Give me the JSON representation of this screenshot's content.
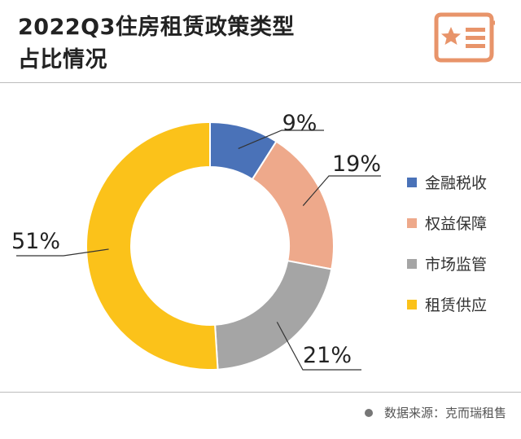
{
  "header": {
    "title_line1": "2022Q3住房租赁政策类型",
    "title_line2": "占比情况"
  },
  "logo": {
    "icon": "star-document-icon",
    "color": "#e8946a"
  },
  "source": {
    "text": "数据来源：克而瑞租售"
  },
  "chart_data": {
    "type": "pie",
    "donut": true,
    "title": "2022Q3住房租赁政策类型占比情况",
    "categories": [
      "金融税收",
      "权益保障",
      "市场监管",
      "租赁供应"
    ],
    "values": [
      9,
      19,
      21,
      51
    ],
    "labels": [
      "9%",
      "19%",
      "21%",
      "51%"
    ],
    "colors": [
      "#4a72b8",
      "#eea98b",
      "#a5a5a5",
      "#fbc21a"
    ],
    "legend": "right"
  }
}
